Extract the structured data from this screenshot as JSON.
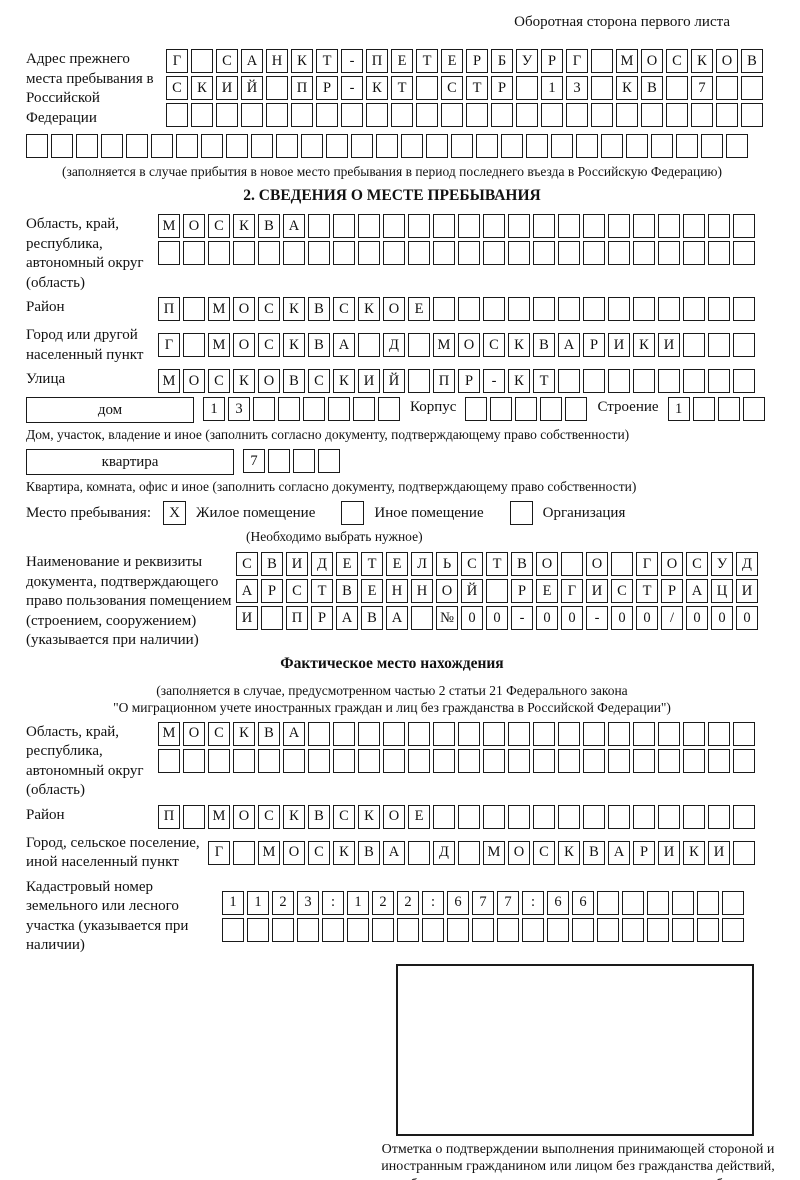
{
  "colors": {
    "ink": "#1a1a1a",
    "paper": "#ffffff"
  },
  "page_header": "Оборотная сторона первого листа",
  "prev_address": {
    "label": "Адрес прежнего места пребывания в Российской Федерации",
    "rows": [
      {
        "chars": "Г САНКТ-ПЕТЕРБУРГ МОСКОВ",
        "len": 24
      },
      {
        "chars": "СКИЙ ПР-КТ СТР 13 КВ 7",
        "len": 24
      },
      {
        "chars": "",
        "len": 24
      }
    ],
    "overflow_row": {
      "chars": "",
      "len": 29
    },
    "note": "(заполняется в случае прибытия в новое место пребывания в период последнего въезда в Российскую Федерацию)"
  },
  "section2": {
    "title": "2. СВЕДЕНИЯ О МЕСТЕ ПРЕБЫВАНИЯ",
    "region": {
      "label": "Область, край, республика, автономный округ (область)",
      "rows": [
        {
          "chars": "МОСКВА",
          "len": 24
        },
        {
          "chars": "",
          "len": 24
        }
      ]
    },
    "district": {
      "label": "Район",
      "row": {
        "chars": "П МОСКВСКОЕ",
        "len": 24
      }
    },
    "city": {
      "label": "Город или другой населенный пункт",
      "row": {
        "chars": "Г МОСКВА Д МОСКВАРИКИ",
        "len": 24
      }
    },
    "street": {
      "label": "Улица",
      "row": {
        "chars": "МОСКОВСКИЙ ПР-КТ",
        "len": 24
      }
    },
    "house": {
      "box_label": "дом",
      "cells": {
        "chars": "13",
        "len": 8
      },
      "korpus_label": "Корпус",
      "korpus_cells": {
        "chars": "",
        "len": 5
      },
      "stroenie_label": "Строение",
      "stroenie_cells": {
        "chars": "1",
        "len": 4
      },
      "note": "Дом, участок, владение и иное (заполнить согласно документу, подтверждающему право собственности)"
    },
    "apartment": {
      "box_label": "квартира",
      "cells": {
        "chars": "7",
        "len": 4
      },
      "note": "Квартира, комната, офис и иное (заполнить согласно документу, подтверждающему право собственности)"
    },
    "stay_place": {
      "label": "Место пребывания:",
      "options": [
        {
          "label": "Жилое помещение",
          "mark": "X"
        },
        {
          "label": "Иное помещение",
          "mark": ""
        },
        {
          "label": "Организация",
          "mark": ""
        }
      ],
      "note": "(Необходимо выбрать нужное)"
    },
    "document": {
      "label": "Наименование и реквизиты документа, подтверждающего право пользования помещением (строением, сооружением) (указывается при наличии)",
      "rows": [
        {
          "chars": "СВИДЕТЕЛЬСТВО О ГОСУД",
          "len": 21
        },
        {
          "chars": "АРСТВЕННОЙ РЕГИСТРАЦИ",
          "len": 21
        },
        {
          "chars": "И ПРАВА №00-00-00/000",
          "len": 21
        }
      ]
    }
  },
  "actual_location": {
    "title": "Фактическое место нахождения",
    "note_line1": "(заполняется в случае, предусмотренном частью 2 статьи 21 Федерального закона",
    "note_line2": "\"О миграционном учете иностранных граждан и лиц без гражданства в Российской Федерации\")",
    "region": {
      "label": "Область, край, республика, автономный округ (область)",
      "rows": [
        {
          "chars": "МОСКВА",
          "len": 24
        },
        {
          "chars": "",
          "len": 24
        }
      ]
    },
    "district": {
      "label": "Район",
      "row": {
        "chars": "П МОСКВСКОЕ",
        "len": 24
      }
    },
    "city": {
      "label": "Город, сельское поселение, иной населенный пункт",
      "row": {
        "chars": "Г МОСКВА Д МОСКВАРИКИ",
        "len": 22
      }
    },
    "cadastral": {
      "label": "Кадастровый номер земельного или лесного участка (указывается при наличии)",
      "rows": [
        {
          "chars": "1123:122:677:66",
          "len": 21
        },
        {
          "chars": "",
          "len": 21
        }
      ]
    },
    "confirmation_note": "Отметка о подтверждении выполнения принимающей стороной и иностранным гражданином или лицом без гражданства действий, необходимых для его постановки на учет по месту пребывания"
  }
}
